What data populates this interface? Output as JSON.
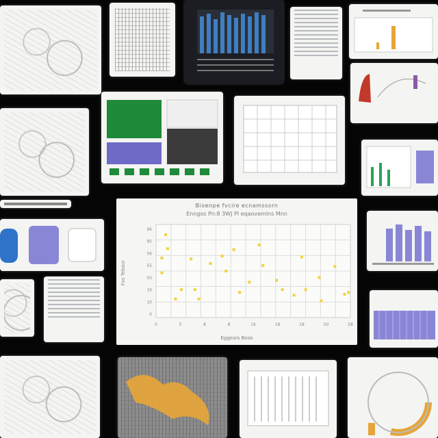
{
  "collage": {
    "scatter_panel": {
      "title": "Bioenpe fvcire ecnamssorn",
      "subtitle": "Enngos Pn:8 3WJ Pl eqaovemlns Mnn",
      "x_axis_label": "Eggesrs Boos",
      "y_axis_label": "Fos Tebaor"
    },
    "colors": {
      "background": "#050505",
      "paper": "#f4f4f2",
      "accent_yellow": "#f2d23a",
      "accent_blue": "#3f7ec0",
      "accent_purple": "#8a86d6",
      "accent_green": "#1e8a3a",
      "accent_orange": "#e6a53a"
    }
  },
  "chart_data": {
    "type": "scatter",
    "title": "Bioenpe fvcire ecnamssorn",
    "subtitle": "Enngos Pn:8 3WJ Pl eqaovemlns Mnn",
    "xlabel": "Eggesrs Boos",
    "ylabel": "Fos Tebaor",
    "x_ticks": [
      "0",
      "5",
      "8",
      "8",
      "16",
      "18",
      "18",
      "50",
      "58"
    ],
    "y_ticks": [
      "96",
      "95",
      "56",
      "55",
      "50",
      "16",
      "10",
      "0"
    ],
    "xlim": [
      0,
      10
    ],
    "ylim": [
      0,
      10
    ],
    "grid": true,
    "points": [
      {
        "x": 0.6,
        "y": 7.4
      },
      {
        "x": 0.3,
        "y": 6.4
      },
      {
        "x": 0.5,
        "y": 8.9
      },
      {
        "x": 1.8,
        "y": 6.3
      },
      {
        "x": 0.3,
        "y": 4.8
      },
      {
        "x": 1.3,
        "y": 3.0
      },
      {
        "x": 1.0,
        "y": 2.0
      },
      {
        "x": 2.2,
        "y": 2.0
      },
      {
        "x": 2.0,
        "y": 3.0
      },
      {
        "x": 2.8,
        "y": 5.8
      },
      {
        "x": 3.6,
        "y": 5.0
      },
      {
        "x": 3.4,
        "y": 6.6
      },
      {
        "x": 4.0,
        "y": 7.3
      },
      {
        "x": 4.3,
        "y": 2.7
      },
      {
        "x": 5.3,
        "y": 7.8
      },
      {
        "x": 4.8,
        "y": 3.8
      },
      {
        "x": 5.5,
        "y": 5.6
      },
      {
        "x": 6.2,
        "y": 4.0
      },
      {
        "x": 6.5,
        "y": 3.0
      },
      {
        "x": 7.1,
        "y": 2.4
      },
      {
        "x": 7.7,
        "y": 3.0
      },
      {
        "x": 7.5,
        "y": 6.5
      },
      {
        "x": 8.4,
        "y": 4.3
      },
      {
        "x": 8.5,
        "y": 1.8
      },
      {
        "x": 9.2,
        "y": 5.5
      },
      {
        "x": 9.7,
        "y": 2.5
      },
      {
        "x": 9.9,
        "y": 2.7
      }
    ]
  }
}
